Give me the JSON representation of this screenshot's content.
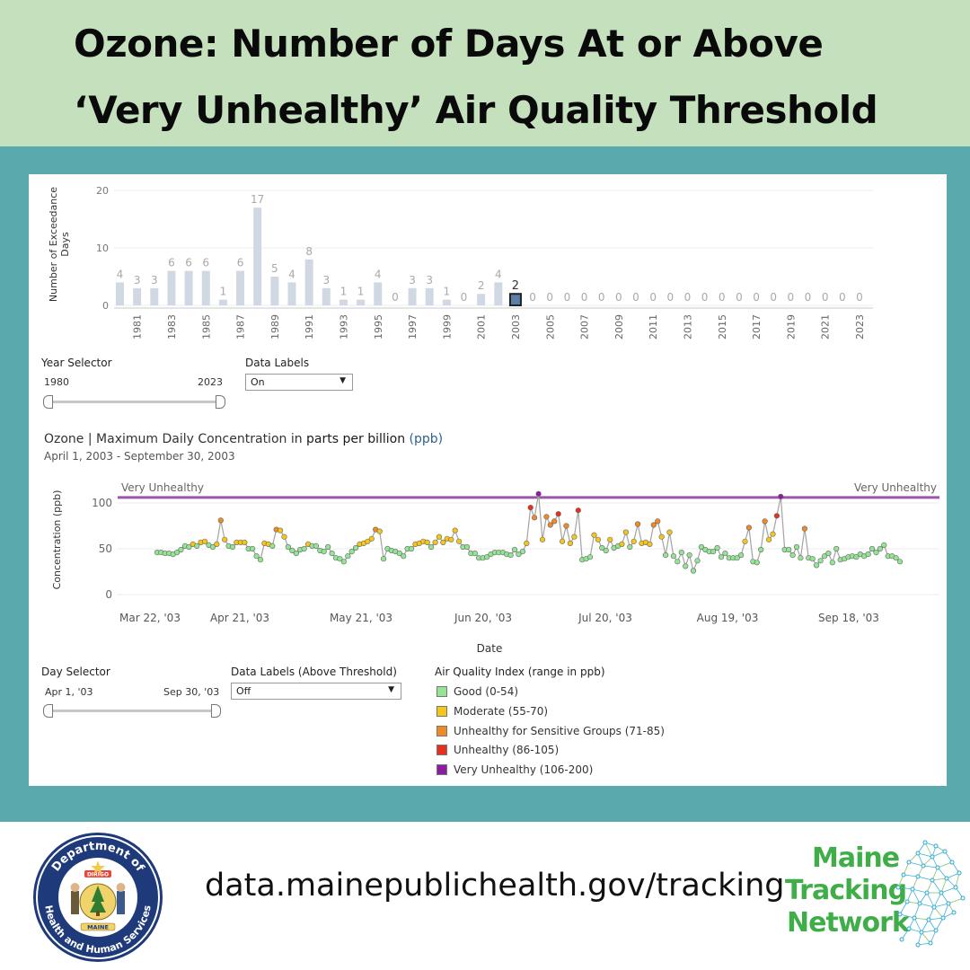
{
  "header": {
    "title_line1": "Ozone: Number of Days At or Above",
    "title_line2": "‘Very Unhealthy’ Air Quality Threshold"
  },
  "bar_chart": {
    "ylabel": "Number of Exceedance Days",
    "yticks": [
      "20",
      "10",
      "0"
    ],
    "selected_year": 2003,
    "colors": {
      "bar": "#d0d9e3",
      "selected": "#5b7fa7",
      "label": "#a9a9a9"
    },
    "chart_data": {
      "type": "bar",
      "ylim": [
        0,
        20
      ],
      "years": [
        1980,
        1981,
        1982,
        1983,
        1984,
        1985,
        1986,
        1987,
        1988,
        1989,
        1990,
        1991,
        1992,
        1993,
        1994,
        1995,
        1996,
        1997,
        1998,
        1999,
        2000,
        2001,
        2002,
        2003,
        2004,
        2005,
        2006,
        2007,
        2008,
        2009,
        2010,
        2011,
        2012,
        2013,
        2014,
        2015,
        2016,
        2017,
        2018,
        2019,
        2020,
        2021,
        2022,
        2023
      ],
      "values": [
        4,
        3,
        3,
        6,
        6,
        6,
        1,
        6,
        17,
        5,
        4,
        8,
        3,
        1,
        1,
        4,
        0,
        3,
        3,
        1,
        0,
        2,
        4,
        2,
        0,
        0,
        0,
        0,
        0,
        0,
        0,
        0,
        0,
        0,
        0,
        0,
        0,
        0,
        0,
        0,
        0,
        0,
        0,
        0
      ],
      "xtick_labels": [
        "1981",
        "1983",
        "1985",
        "1987",
        "1989",
        "1991",
        "1993",
        "1995",
        "1997",
        "1999",
        "2001",
        "2003",
        "2005",
        "2007",
        "2009",
        "2011",
        "2013",
        "2015",
        "2017",
        "2019",
        "2021",
        "2023"
      ]
    }
  },
  "year_selector": {
    "label": "Year Selector",
    "min": "1980",
    "max": "2023"
  },
  "data_labels": {
    "label": "Data Labels",
    "value": "On"
  },
  "line_chart": {
    "title_main": "Ozone | Maximum Daily Concentration in ",
    "title_ppb_words": "parts per billion",
    "title_ppb_abbr": "(ppb)",
    "subtitle": "April 1, 2003 - September 30, 2003",
    "ylabel": "Concentration (ppb)",
    "xlabel": "Date",
    "threshold_label": "Very Unhealthy",
    "threshold_color": "#9a56a8",
    "line_color": "#a3a3a3",
    "yticks": [
      "100",
      "50",
      "0"
    ],
    "xticks": [
      "Mar 22, '03",
      "Apr 21, '03",
      "May 21, '03",
      "Jun 20, '03",
      "Jul 20, '03",
      "Aug 19, '03",
      "Sep 18, '03"
    ],
    "chart_data": {
      "type": "line",
      "x_start": "2003-04-01",
      "x_end": "2003-09-30",
      "ylim": [
        0,
        110
      ],
      "threshold": 106,
      "values": [
        46,
        46,
        45,
        45,
        44,
        46,
        49,
        53,
        52,
        55,
        53,
        57,
        58,
        54,
        52,
        55,
        81,
        60,
        53,
        52,
        57,
        57,
        57,
        50,
        50,
        42,
        38,
        56,
        55,
        53,
        71,
        70,
        63,
        52,
        48,
        45,
        49,
        50,
        55,
        53,
        53,
        48,
        47,
        52,
        45,
        40,
        39,
        36,
        42,
        47,
        51,
        55,
        56,
        58,
        61,
        71,
        69,
        39,
        50,
        48,
        47,
        45,
        42,
        50,
        50,
        55,
        56,
        58,
        57,
        52,
        57,
        63,
        57,
        61,
        60,
        70,
        58,
        52,
        52,
        45,
        45,
        40,
        40,
        41,
        44,
        46,
        46,
        46,
        44,
        43,
        49,
        44,
        47,
        56,
        95,
        84,
        110,
        60,
        85,
        76,
        80,
        88,
        58,
        75,
        56,
        63,
        92,
        38,
        39,
        41,
        65,
        60,
        51,
        48,
        60,
        51,
        53,
        55,
        68,
        52,
        58,
        77,
        56,
        57,
        55,
        76,
        80,
        63,
        43,
        68,
        42,
        36,
        46,
        31,
        43,
        26,
        37,
        52,
        49,
        47,
        47,
        51,
        41,
        45,
        40,
        40,
        40,
        43,
        58,
        73,
        36,
        35,
        49,
        80,
        60,
        66,
        86,
        107,
        49,
        49,
        43,
        52,
        40,
        72,
        40,
        39,
        32,
        37,
        42,
        45,
        35,
        50,
        38,
        39,
        41,
        42,
        41,
        44,
        42,
        44,
        50,
        46,
        50,
        54,
        42,
        42,
        40,
        36
      ],
      "aqi_categories": [
        {
          "name": "Good (0-54)",
          "min": 0,
          "max": 54,
          "color": "#93e493"
        },
        {
          "name": "Moderate (55-70)",
          "min": 55,
          "max": 70,
          "color": "#f5c518"
        },
        {
          "name": "Unhealthy for Sensitive Groups (71-85)",
          "min": 71,
          "max": 85,
          "color": "#f08a24"
        },
        {
          "name": "Unhealthy (86-105)",
          "min": 86,
          "max": 105,
          "color": "#e5301e"
        },
        {
          "name": "Very Unhealthy (106-200)",
          "min": 106,
          "max": 200,
          "color": "#8a1da2"
        }
      ]
    }
  },
  "day_selector": {
    "label": "Day Selector",
    "min": "Apr 1, '03",
    "max": "Sep 30, '03"
  },
  "data_labels_threshold": {
    "label": "Data Labels (Above Threshold)",
    "value": "Off"
  },
  "aqi_legend": {
    "title": "Air Quality Index (range in ppb)",
    "items": [
      {
        "label": "Good (0-54)",
        "color": "#93e493"
      },
      {
        "label": "Moderate (55-70)",
        "color": "#f5c518"
      },
      {
        "label": "Unhealthy for Sensitive Groups (71-85)",
        "color": "#f08a24"
      },
      {
        "label": "Unhealthy (86-105)",
        "color": "#e5301e"
      },
      {
        "label": "Very Unhealthy (106-200)",
        "color": "#8a1da2"
      }
    ]
  },
  "footer": {
    "url": "data.mainepublichealth.gov/tracking",
    "seal_text_top": "Department of",
    "seal_text_bottom": "Health and Human Services",
    "seal_banner": "DIRIGO",
    "seal_state": "MAINE",
    "network_line1": "Maine",
    "network_line2": "Tracking",
    "network_line3": "Network"
  }
}
